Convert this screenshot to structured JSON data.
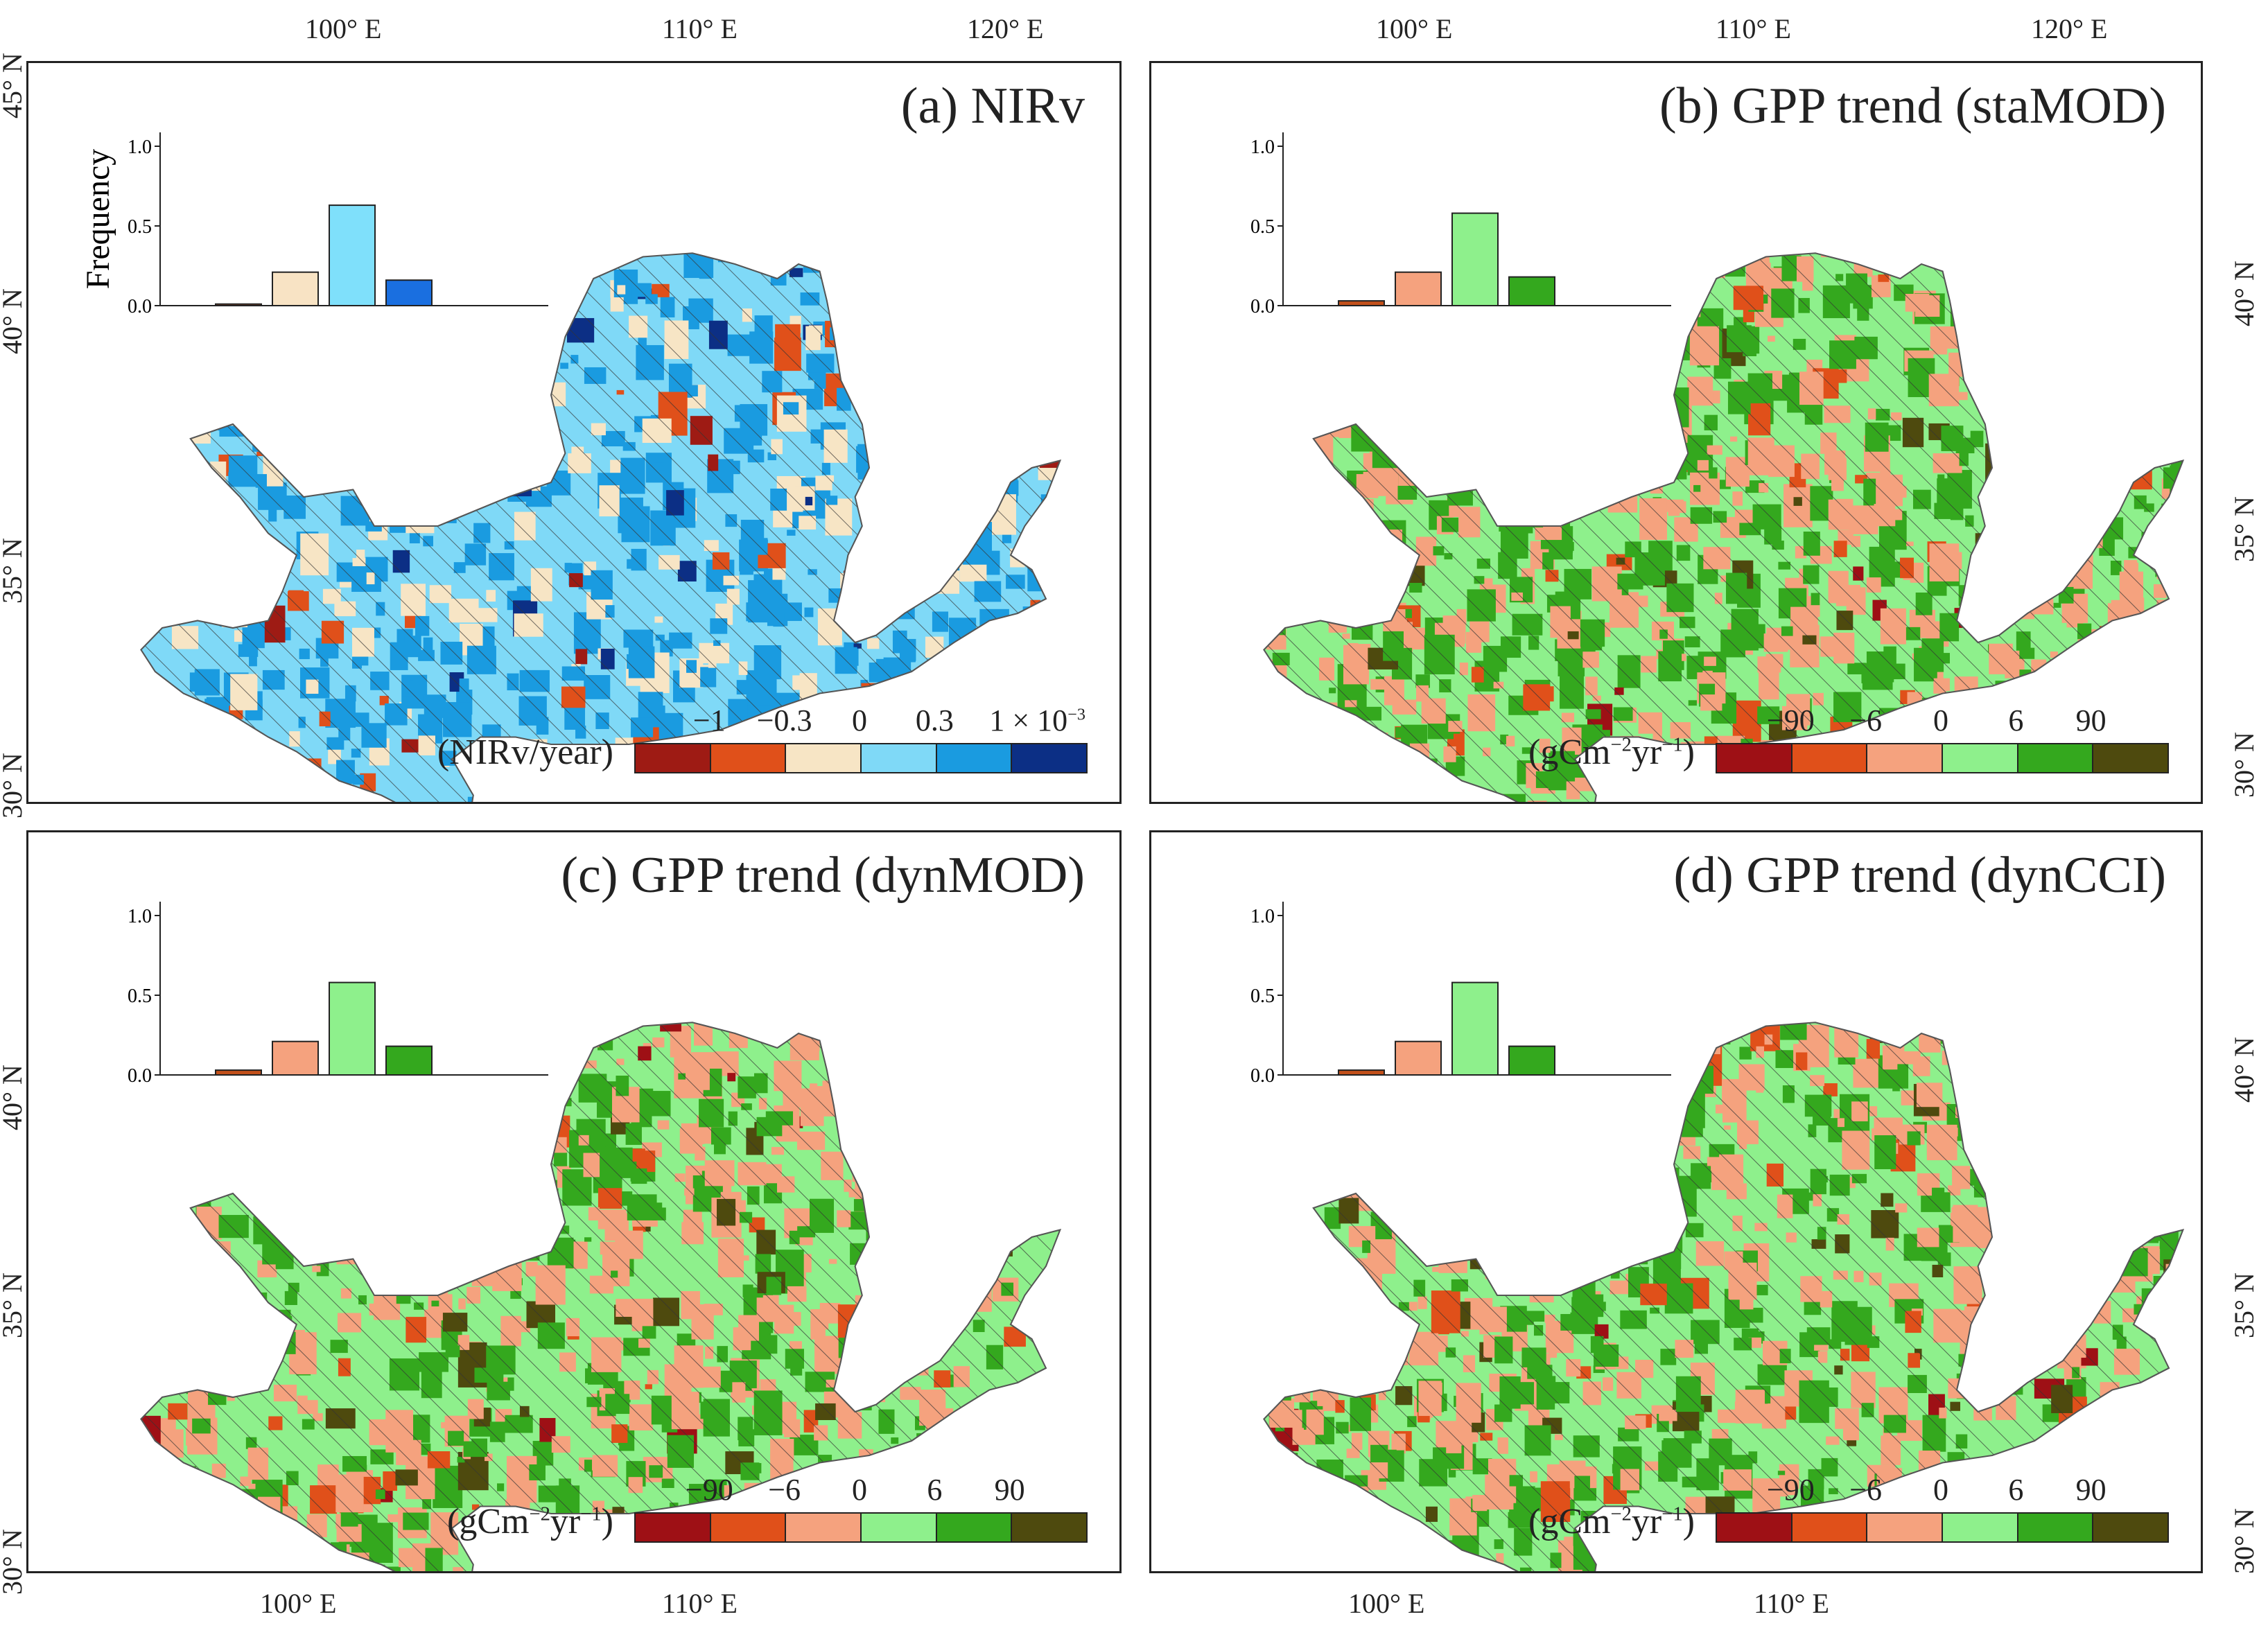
{
  "axes": {
    "top_lon": [
      "100° E",
      "110° E",
      "120° E"
    ],
    "bottom_lon": [
      "100° E",
      "110° E"
    ],
    "left_lat_top": [
      "45° N",
      "40° N",
      "35° N",
      "30° N"
    ],
    "left_lat_bottom": [
      "40° N",
      "35° N",
      "30° N"
    ],
    "right_lat_top": [
      "40° N",
      "35° N",
      "30° N"
    ],
    "right_lat_bottom": [
      "40° N",
      "35° N",
      "30° N"
    ]
  },
  "panels": [
    {
      "title": "(a) NIRv",
      "unit": "(NIRv/year)",
      "unit_exponent": "",
      "ticks": [
        "−1",
        "−0.3",
        "0",
        "0.3",
        "1 × 10"
      ],
      "tick_exponent": "−3",
      "legend_colors": [
        "#9e1b14",
        "#e0501a",
        "#f7e5c5",
        "#7fd9f7",
        "#1a9be0",
        "#0c2f85"
      ],
      "map_theme": "nirv",
      "hist": {
        "ylabel": "Frequency",
        "yticks": [
          "1.0",
          "0.5",
          "0.0"
        ],
        "values": [
          0.01,
          0.21,
          0.63,
          0.16
        ],
        "colors": [
          "#b24a1c",
          "#f8e3c4",
          "#7fe0fb",
          "#1a6fe0"
        ]
      }
    },
    {
      "title": "(b) GPP trend (staMOD)",
      "unit": "(gCm",
      "unit_exponent": "−2",
      "unit_tail": "yr",
      "unit_tail_exponent": "−1",
      "ticks": [
        "−90",
        "−6",
        "0",
        "6",
        "90"
      ],
      "tick_exponent": "",
      "legend_colors": [
        "#9e1015",
        "#e0501a",
        "#f5a27e",
        "#8ef08c",
        "#34a81e",
        "#4e4a0e"
      ],
      "map_theme": "gpp",
      "hist": {
        "ylabel": "",
        "yticks": [
          "1.0",
          "0.5",
          "0.0"
        ],
        "values": [
          0.03,
          0.21,
          0.58,
          0.18
        ],
        "colors": [
          "#c2501a",
          "#f5a27e",
          "#8ef08c",
          "#34a81e"
        ]
      }
    },
    {
      "title": "(c) GPP trend (dynMOD)",
      "unit": "(gCm",
      "unit_exponent": "−2",
      "unit_tail": "yr",
      "unit_tail_exponent": "−1",
      "ticks": [
        "−90",
        "−6",
        "0",
        "6",
        "90"
      ],
      "tick_exponent": "",
      "legend_colors": [
        "#9e1015",
        "#e0501a",
        "#f5a27e",
        "#8ef08c",
        "#34a81e",
        "#4e4a0e"
      ],
      "map_theme": "gpp",
      "hist": {
        "ylabel": "",
        "yticks": [
          "1.0",
          "0.5",
          "0.0"
        ],
        "values": [
          0.03,
          0.21,
          0.58,
          0.18
        ],
        "colors": [
          "#c2501a",
          "#f5a27e",
          "#8ef08c",
          "#34a81e"
        ]
      }
    },
    {
      "title": "(d) GPP trend (dynCCI)",
      "unit": "(gCm",
      "unit_exponent": "−2",
      "unit_tail": "yr",
      "unit_tail_exponent": "−1",
      "ticks": [
        "−90",
        "−6",
        "0",
        "6",
        "90"
      ],
      "tick_exponent": "",
      "legend_colors": [
        "#9e1015",
        "#e0501a",
        "#f5a27e",
        "#8ef08c",
        "#34a81e",
        "#4e4a0e"
      ],
      "map_theme": "gpp",
      "hist": {
        "ylabel": "",
        "yticks": [
          "1.0",
          "0.5",
          "0.0"
        ],
        "values": [
          0.03,
          0.21,
          0.58,
          0.18
        ],
        "colors": [
          "#c2501a",
          "#f5a27e",
          "#8ef08c",
          "#34a81e"
        ]
      }
    }
  ]
}
